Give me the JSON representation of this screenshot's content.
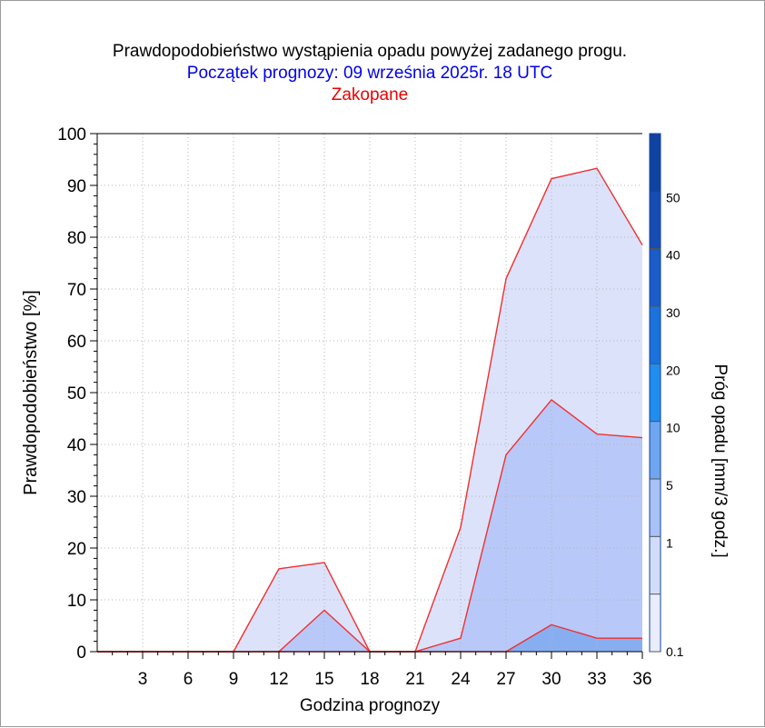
{
  "chart_data": {
    "type": "area",
    "title": "Prawdopodobieństwo wystąpienia opadu powyżej zadanego progu.",
    "subtitle": "Początek prognozy: 09 września 2025r. 18 UTC",
    "location": "Zakopane",
    "xlabel": "Godzina prognozy",
    "ylabel": "Prawdopodobieństwo [%]",
    "xlim": [
      0,
      36
    ],
    "ylim": [
      0,
      100
    ],
    "xticks": [
      3,
      6,
      9,
      12,
      15,
      18,
      21,
      24,
      27,
      30,
      33,
      36
    ],
    "yticks": [
      0,
      10,
      20,
      30,
      40,
      50,
      60,
      70,
      80,
      90,
      100
    ],
    "x": [
      0,
      3,
      6,
      9,
      12,
      15,
      18,
      21,
      24,
      27,
      30,
      33,
      36
    ],
    "series": [
      {
        "threshold": 0.1,
        "values": [
          0,
          0,
          0,
          0,
          16,
          17.2,
          0,
          0,
          24,
          72,
          91.3,
          93.3,
          78.5
        ]
      },
      {
        "threshold": 1,
        "values": [
          0,
          0,
          0,
          0,
          0,
          8,
          0,
          0,
          2.6,
          38,
          48.6,
          42,
          41.3
        ]
      },
      {
        "threshold": 5,
        "values": [
          0,
          0,
          0,
          0,
          0,
          0,
          0,
          0,
          0,
          0,
          5.2,
          2.6,
          2.6
        ]
      }
    ],
    "fill_colors": [
      "#dce2fa",
      "#b8c8f8",
      "#88aef2"
    ],
    "line_color": "#ee3030",
    "grid": true,
    "colorbar": {
      "label": "Próg opadu [mm/3 godz.]",
      "ticks": [
        "0.1",
        "1",
        "5",
        "10",
        "20",
        "30",
        "40",
        "50"
      ],
      "colors": [
        "#eaedfb",
        "#d2dcf8",
        "#a9c1f5",
        "#6ea7f0",
        "#1f8ef0",
        "#1a72dc",
        "#1a5cc8",
        "#174cb4",
        "#1042a0"
      ]
    }
  }
}
